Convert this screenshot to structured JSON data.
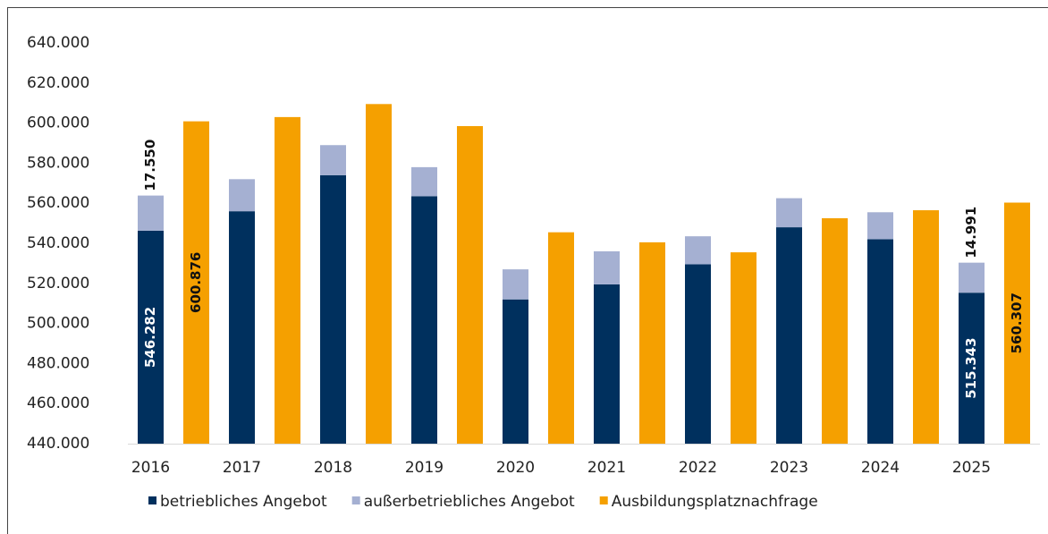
{
  "chart_data": {
    "type": "bar",
    "categories": [
      "2016",
      "2017",
      "2018",
      "2019",
      "2020",
      "2021",
      "2022",
      "2023",
      "2024",
      "2025"
    ],
    "series": [
      {
        "name": "betriebliches Angebot",
        "color": "#00305e",
        "values": [
          546282,
          556000,
          574000,
          563500,
          512000,
          519500,
          529500,
          548000,
          542000,
          515343
        ],
        "value_labels": [
          "546.282",
          null,
          null,
          null,
          null,
          null,
          null,
          null,
          null,
          "515.343"
        ]
      },
      {
        "name": "außerbetriebliches Angebot",
        "color": "#a5b0d2",
        "values": [
          17550,
          16000,
          15000,
          14500,
          15000,
          16500,
          14000,
          14500,
          13500,
          14991
        ],
        "value_labels": [
          "17.550",
          null,
          null,
          null,
          null,
          null,
          null,
          null,
          null,
          "14.991"
        ]
      },
      {
        "name": "Ausbildungsplatznachfrage",
        "color": "#f5a000",
        "values": [
          600876,
          603000,
          609500,
          598500,
          545500,
          540500,
          535500,
          552500,
          556500,
          560307
        ],
        "value_labels": [
          "600.876",
          null,
          null,
          null,
          null,
          null,
          null,
          null,
          null,
          "560.307"
        ]
      }
    ],
    "ylim": [
      440000,
      640000
    ],
    "yticks": [
      {
        "value": 440000,
        "label": "440.000"
      },
      {
        "value": 460000,
        "label": "460.000"
      },
      {
        "value": 480000,
        "label": "480.000"
      },
      {
        "value": 500000,
        "label": "500.000"
      },
      {
        "value": 520000,
        "label": "520.000"
      },
      {
        "value": 540000,
        "label": "540.000"
      },
      {
        "value": 560000,
        "label": "560.000"
      },
      {
        "value": 580000,
        "label": "580.000"
      },
      {
        "value": 600000,
        "label": "600.000"
      },
      {
        "value": 620000,
        "label": "620.000"
      },
      {
        "value": 640000,
        "label": "640.000"
      }
    ],
    "grid": false,
    "legend": "bottom"
  }
}
